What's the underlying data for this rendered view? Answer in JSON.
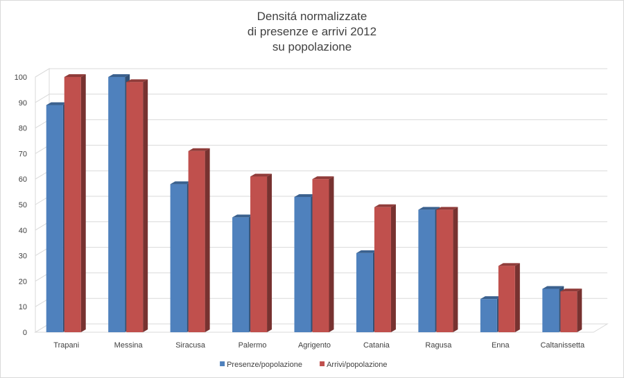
{
  "chart_data": {
    "type": "bar",
    "title_lines": [
      "Densitá normalizzate",
      "di presenze e arrivi 2012",
      "su popolazione"
    ],
    "categories": [
      "Trapani",
      "Messina",
      "Siracusa",
      "Palermo",
      "Agrigento",
      "Catania",
      "Ragusa",
      "Enna",
      "Caltanissetta"
    ],
    "series": [
      {
        "name": "Presenze/popolazione",
        "color": "#4f81bd",
        "values": [
          89,
          100,
          58,
          45,
          53,
          31,
          48,
          13,
          17
        ]
      },
      {
        "name": "Arrivi/popolazione",
        "color": "#c0504d",
        "values": [
          100,
          98,
          71,
          61,
          60,
          49,
          48,
          26,
          16
        ]
      }
    ],
    "y_ticks": [
      "0",
      "10",
      "20",
      "30",
      "40",
      "50",
      "60",
      "70",
      "80",
      "90",
      "100"
    ],
    "ylim": [
      0,
      100
    ],
    "grid": true,
    "legend_position": "bottom",
    "style": "3d-column"
  }
}
